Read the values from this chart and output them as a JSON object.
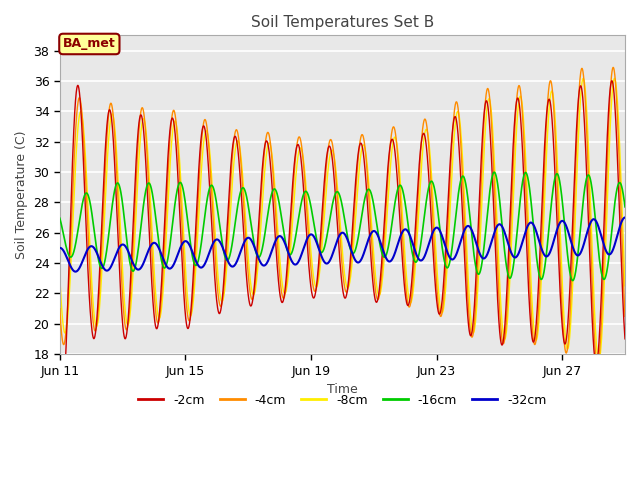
{
  "title": "Soil Temperatures Set B",
  "xlabel": "Time",
  "ylabel": "Soil Temperature (C)",
  "annotation": "BA_met",
  "ylim": [
    18,
    39
  ],
  "yticks": [
    18,
    20,
    22,
    24,
    26,
    28,
    30,
    32,
    34,
    36,
    38
  ],
  "xlim": [
    11,
    29
  ],
  "xtick_days": [
    11,
    15,
    19,
    23,
    27
  ],
  "xtick_labels": [
    "Jun 11",
    "Jun 15",
    "Jun 19",
    "Jun 23",
    "Jun 27"
  ],
  "colors": {
    "-2cm": "#cc0000",
    "-4cm": "#ff8c00",
    "-8cm": "#ffee00",
    "-16cm": "#00cc00",
    "-32cm": "#0000cc"
  },
  "fig_bg": "#ffffff",
  "plot_bg": "#e8e8e8",
  "grid_color": "#ffffff",
  "annotation_fg": "#8b0000",
  "annotation_bg": "#ffff99",
  "annotation_border": "#8b0000",
  "period_hours": 24,
  "total_days": 18,
  "n_points": 3000
}
